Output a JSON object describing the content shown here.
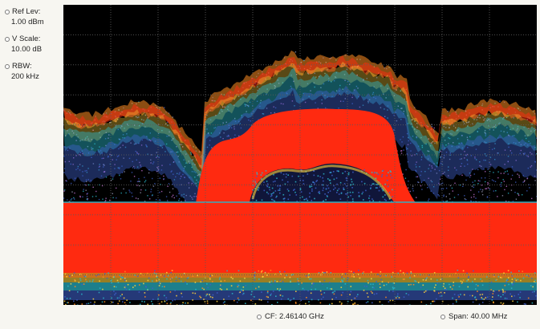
{
  "params": {
    "ref_level": {
      "label": "Ref Lev:",
      "value": "1.00 dBm"
    },
    "v_scale": {
      "label": "V Scale:",
      "value": "10.00 dB"
    },
    "rbw": {
      "label": "RBW:",
      "value": "200 kHz"
    }
  },
  "status": {
    "center_freq": "CF: 2.46140 GHz",
    "span": "Span: 40.00 MHz"
  },
  "display": {
    "mode": "dpx-spectrum",
    "colors": {
      "background": "#000000",
      "grid": "#5a5a5a",
      "hot": "#ff2a10",
      "warm": "#ff8c20",
      "mid": "#ffd23c",
      "cool": "#2ab5c8",
      "cold": "#3d5fc8",
      "sparse": "#c070d0"
    }
  }
}
